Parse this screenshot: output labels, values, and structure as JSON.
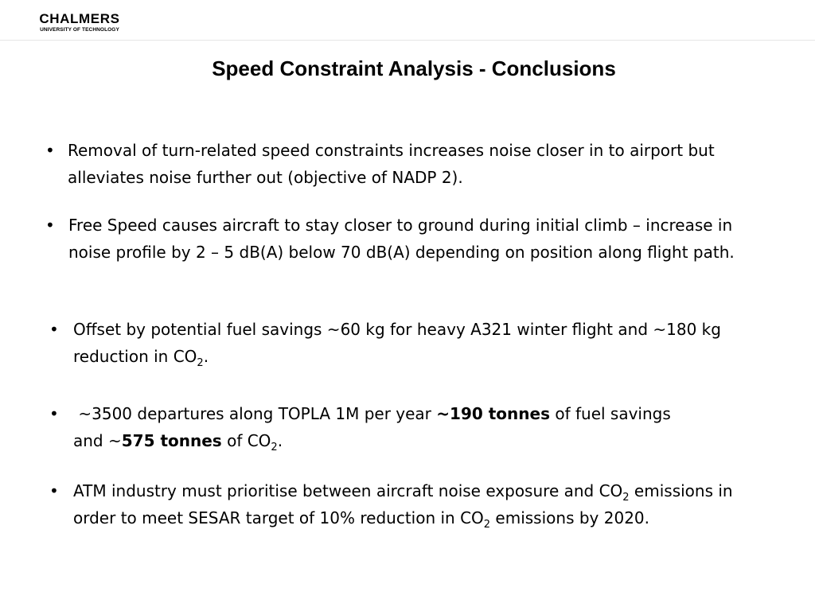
{
  "header": {
    "logo_name": "CHALMERS",
    "logo_sub": "UNIVERSITY OF TECHNOLOGY"
  },
  "slide": {
    "title": "Speed Constraint Analysis - Conclusions",
    "bullet_symbol": "•",
    "bullets": [
      {
        "text": "Removal of turn-related speed constraints increases noise closer in to airport but alleviates noise further out (objective of NADP 2)."
      },
      {
        "text": "Free Speed causes aircraft to stay closer to ground during initial climb – increase in noise profile by 2 – 5 dB(A) below 70 dB(A) depending on position along flight path."
      },
      {
        "part1": "Offset by potential fuel savings ~60 kg for heavy A321 winter flight and ~180 kg reduction in CO",
        "sub1": "2",
        "part2": "."
      },
      {
        "part1": " ~3500 departures along TOPLA 1M per year ",
        "bold1": "~190 tonnes",
        "part2": " of fuel savings and ~",
        "bold2": "575 tonnes",
        "part3": " of CO",
        "sub1": "2",
        "part4": "."
      },
      {
        "part1": "ATM industry must prioritise between aircraft noise exposure and CO",
        "sub1": "2",
        "part2": " emissions in order to meet SESAR target of 10% reduction in CO",
        "sub2": "2",
        "part3": " emissions by 2020."
      }
    ]
  }
}
